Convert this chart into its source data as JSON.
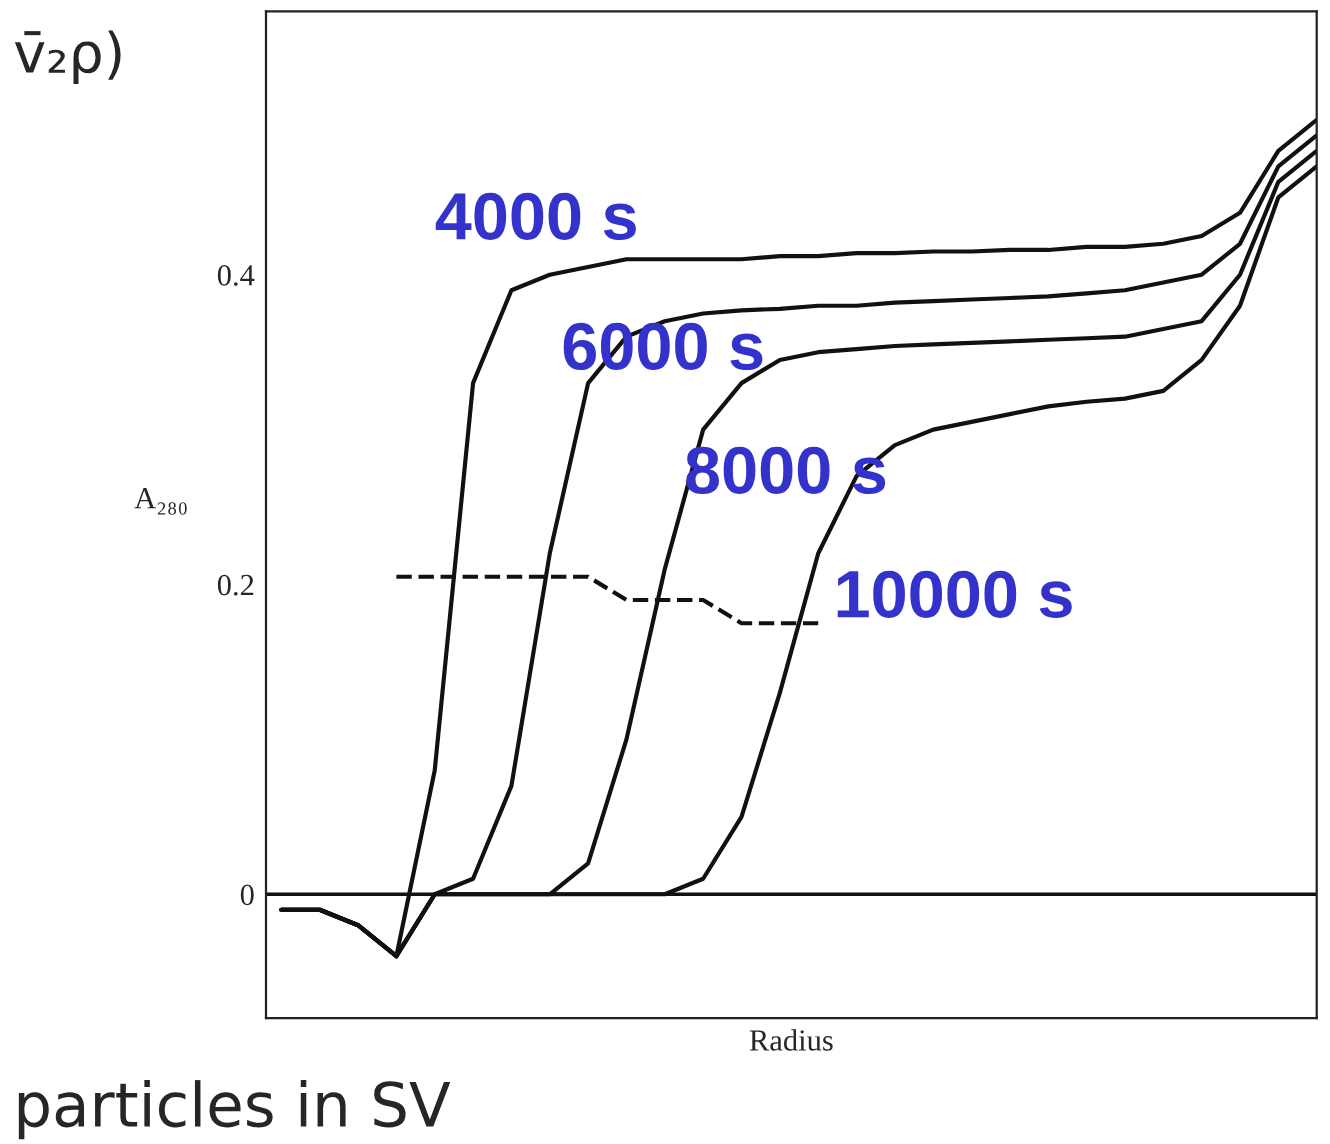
{
  "chart_data": {
    "type": "line",
    "xlabel": "Radius",
    "ylabel": "A₂₈₀",
    "categories": [
      null,
      null,
      null,
      null,
      null,
      null,
      null,
      null,
      null,
      null,
      null,
      null,
      null,
      null,
      null,
      null,
      null,
      null,
      null,
      null,
      null,
      null,
      null,
      null,
      null,
      null,
      null,
      null
    ],
    "series": [
      {
        "name": "4000 s",
        "color": "#111111",
        "values": [
          -0.01,
          -0.01,
          -0.02,
          -0.04,
          0.08,
          0.33,
          0.39,
          0.4,
          0.405,
          0.41,
          0.41,
          0.41,
          0.41,
          0.412,
          0.412,
          0.414,
          0.414,
          0.415,
          0.415,
          0.416,
          0.416,
          0.418,
          0.418,
          0.42,
          0.425,
          0.44,
          0.48,
          0.5
        ]
      },
      {
        "name": "6000 s",
        "color": "#111111",
        "values": [
          -0.01,
          -0.01,
          -0.02,
          -0.04,
          0.0,
          0.01,
          0.07,
          0.22,
          0.33,
          0.36,
          0.37,
          0.375,
          0.377,
          0.378,
          0.38,
          0.38,
          0.382,
          0.383,
          0.384,
          0.385,
          0.386,
          0.388,
          0.39,
          0.395,
          0.4,
          0.42,
          0.47,
          0.49
        ]
      },
      {
        "name": "8000 s",
        "color": "#111111",
        "values": [
          -0.01,
          -0.01,
          -0.02,
          -0.04,
          0.0,
          0.0,
          0.0,
          0.0,
          0.02,
          0.1,
          0.21,
          0.3,
          0.33,
          0.345,
          0.35,
          0.352,
          0.354,
          0.355,
          0.356,
          0.357,
          0.358,
          0.359,
          0.36,
          0.365,
          0.37,
          0.4,
          0.46,
          0.48
        ]
      },
      {
        "name": "10000 s",
        "color": "#111111",
        "values": [
          -0.01,
          -0.01,
          -0.02,
          -0.04,
          0.0,
          0.0,
          0.0,
          0.0,
          0.0,
          0.0,
          0.0,
          0.01,
          0.05,
          0.13,
          0.22,
          0.27,
          0.29,
          0.3,
          0.305,
          0.31,
          0.315,
          0.318,
          0.32,
          0.325,
          0.345,
          0.38,
          0.45,
          0.47
        ]
      },
      {
        "color": "#111111",
        "line_style": "dashed",
        "values": [
          null,
          null,
          null,
          0.205,
          0.205,
          0.205,
          0.205,
          0.205,
          0.205,
          0.19,
          0.19,
          0.19,
          0.175,
          0.175,
          0.175,
          null,
          null,
          null,
          null,
          null,
          null,
          null,
          null,
          null,
          null,
          null,
          null,
          null
        ]
      }
    ],
    "ylim": [
      -0.08,
      0.57
    ],
    "yticks": [
      0,
      0.2,
      0.4
    ],
    "tick_labels": "y",
    "grid": false,
    "legend": false,
    "marker": "none",
    "line_style": "solid",
    "ref_lines": [
      {
        "axis": "y",
        "value": 0,
        "color": "#111111",
        "line_style": "solid"
      }
    ],
    "annotations": [
      "v̄₂ρ)",
      "particles in SV"
    ]
  }
}
